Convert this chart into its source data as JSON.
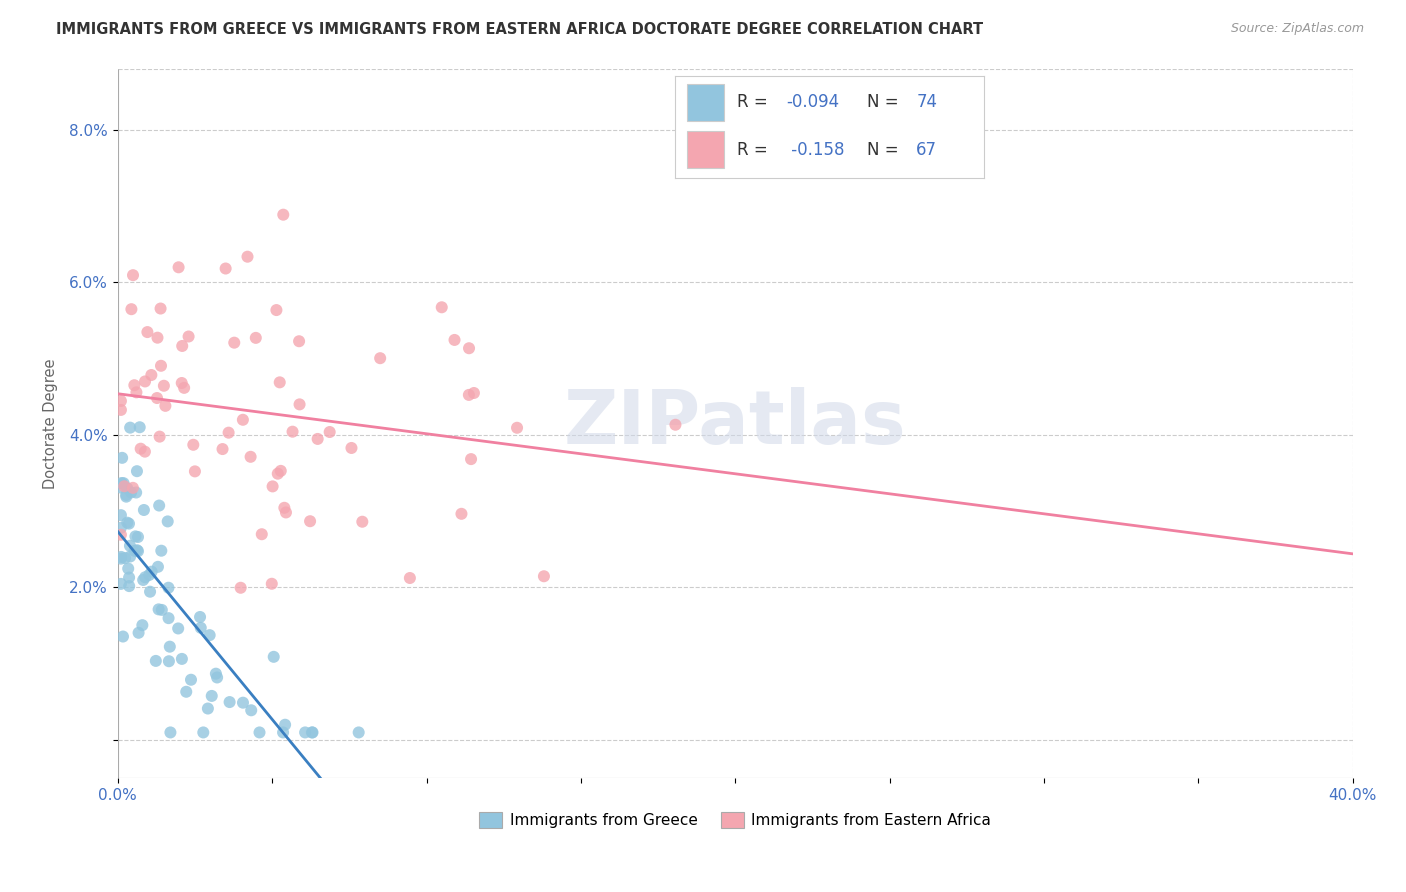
{
  "title": "IMMIGRANTS FROM GREECE VS IMMIGRANTS FROM EASTERN AFRICA DOCTORATE DEGREE CORRELATION CHART",
  "source": "Source: ZipAtlas.com",
  "ylabel": "Doctorate Degree",
  "legend_label1": "Immigrants from Greece",
  "legend_label2": "Immigrants from Eastern Africa",
  "xlim": [
    0.0,
    0.4
  ],
  "ylim": [
    -0.005,
    0.088
  ],
  "yticks": [
    0.0,
    0.02,
    0.04,
    0.06,
    0.08
  ],
  "ytick_labels": [
    "",
    "2.0%",
    "4.0%",
    "6.0%",
    "8.0%"
  ],
  "xtick_labels": [
    "0.0%",
    "",
    "",
    "",
    "",
    "",
    "",
    "",
    "40.0%"
  ],
  "xticks": [
    0.0,
    0.05,
    0.1,
    0.15,
    0.2,
    0.25,
    0.3,
    0.35,
    0.4
  ],
  "greece_R": -0.094,
  "greece_N": 74,
  "ea_R": -0.158,
  "ea_N": 67,
  "greece_color": "#92C5DE",
  "ea_color": "#F4A6B0",
  "greece_line_color": "#3A7FC1",
  "ea_line_color": "#F080A0",
  "dash_line_color": "#A0C8E8",
  "tick_color": "#4472C4",
  "watermark_color": "#D0D8E8",
  "watermark": "ZIPatlas",
  "title_fontsize": 10.5,
  "source_fontsize": 9
}
